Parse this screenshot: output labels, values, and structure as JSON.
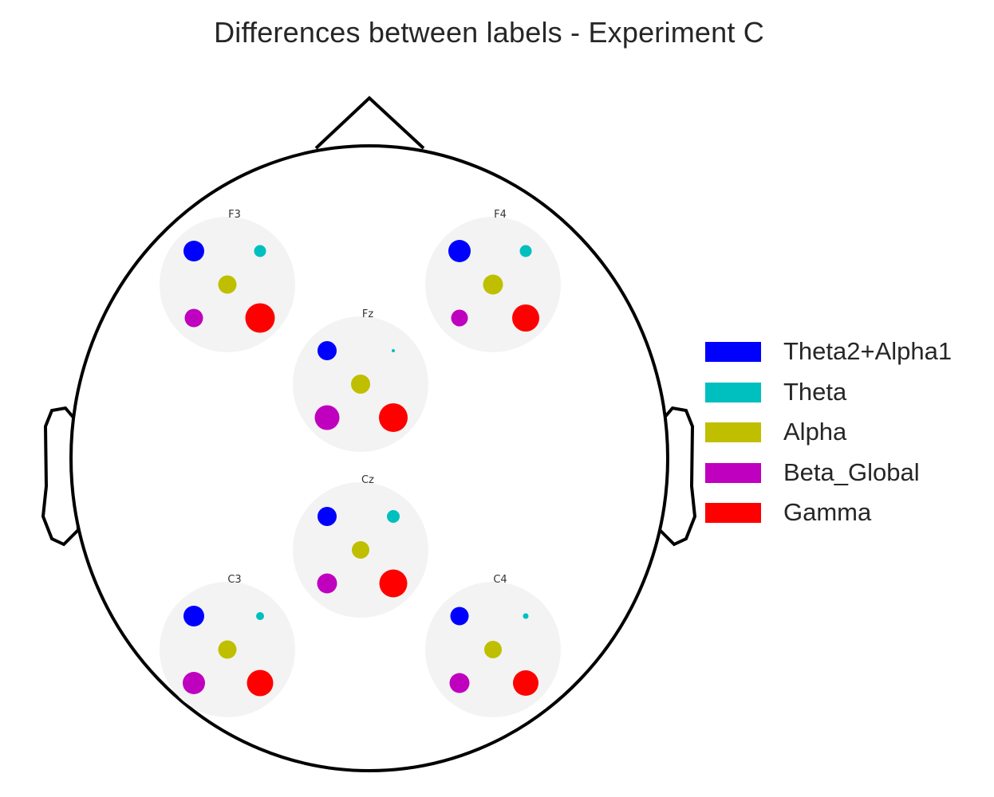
{
  "title": "Differences between labels - Experiment C",
  "legend": [
    {
      "label": "Theta2+Alpha1",
      "color": "#0000ff"
    },
    {
      "label": "Theta",
      "color": "#00bfbf"
    },
    {
      "label": "Alpha",
      "color": "#bfbf00"
    },
    {
      "label": "Beta_Global",
      "color": "#bf00bf"
    },
    {
      "label": "Gamma",
      "color": "#ff0000"
    }
  ],
  "chart_data": {
    "type": "scatter",
    "title": "Differences between labels - Experiment C",
    "series_order": [
      "Theta2+Alpha1",
      "Theta",
      "Alpha",
      "Beta_Global",
      "Gamma"
    ],
    "electrodes": [
      {
        "name": "F3",
        "values": {
          "Theta2+Alpha1": 13,
          "Theta": 7.5,
          "Alpha": 11.5,
          "Beta_Global": 11.5,
          "Gamma": 18.5
        }
      },
      {
        "name": "F4",
        "values": {
          "Theta2+Alpha1": 14,
          "Theta": 7.5,
          "Alpha": 12.5,
          "Beta_Global": 10.5,
          "Gamma": 17
        }
      },
      {
        "name": "Fz",
        "values": {
          "Theta2+Alpha1": 12,
          "Theta": 2,
          "Alpha": 12,
          "Beta_Global": 15.5,
          "Gamma": 18
        }
      },
      {
        "name": "Cz",
        "values": {
          "Theta2+Alpha1": 12,
          "Theta": 8,
          "Alpha": 11,
          "Beta_Global": 12.5,
          "Gamma": 17.5
        }
      },
      {
        "name": "C3",
        "values": {
          "Theta2+Alpha1": 13,
          "Theta": 5,
          "Alpha": 11.5,
          "Beta_Global": 14,
          "Gamma": 16.5
        }
      },
      {
        "name": "C4",
        "values": {
          "Theta2+Alpha1": 11.5,
          "Theta": 3.5,
          "Alpha": 11,
          "Beta_Global": 12.5,
          "Gamma": 16
        }
      }
    ]
  }
}
